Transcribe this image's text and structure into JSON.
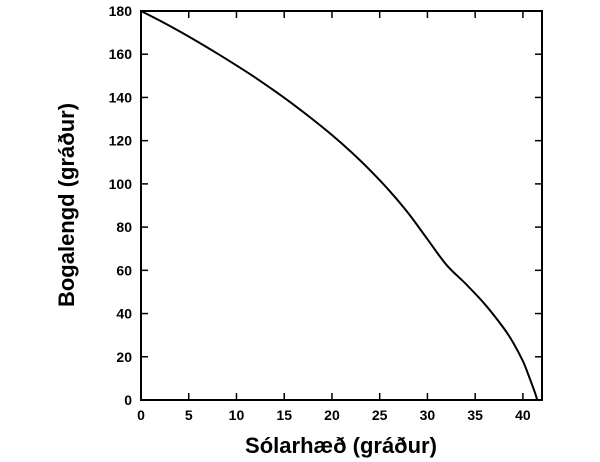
{
  "chart_data": {
    "type": "line",
    "title": "",
    "xlabel": "Sólarhæð (gráður)",
    "ylabel": "Bogalengd (gráður)",
    "xlim": [
      0,
      42
    ],
    "ylim": [
      0,
      180
    ],
    "xticks": [
      0,
      5,
      10,
      15,
      20,
      25,
      30,
      35,
      40
    ],
    "yticks": [
      0,
      20,
      40,
      60,
      80,
      100,
      120,
      140,
      160,
      180
    ],
    "grid": false,
    "legend": "none",
    "line_color": "#000000",
    "series": [
      {
        "x": [
          0,
          2,
          4,
          6,
          8,
          10,
          12,
          14,
          16,
          18,
          20,
          22,
          24,
          26,
          28,
          30,
          32,
          34,
          36,
          38,
          39,
          40,
          40.5,
          41,
          41.3,
          41.5
        ],
        "y": [
          180,
          175.5,
          170.7,
          165.6,
          160.3,
          154.8,
          149.1,
          143.0,
          136.6,
          129.8,
          122.6,
          114.8,
          106.3,
          96.9,
          86.4,
          74.4,
          62.5,
          53.8,
          44.4,
          33.2,
          26.4,
          18.0,
          12.5,
          6.6,
          2.9,
          0
        ]
      }
    ]
  }
}
